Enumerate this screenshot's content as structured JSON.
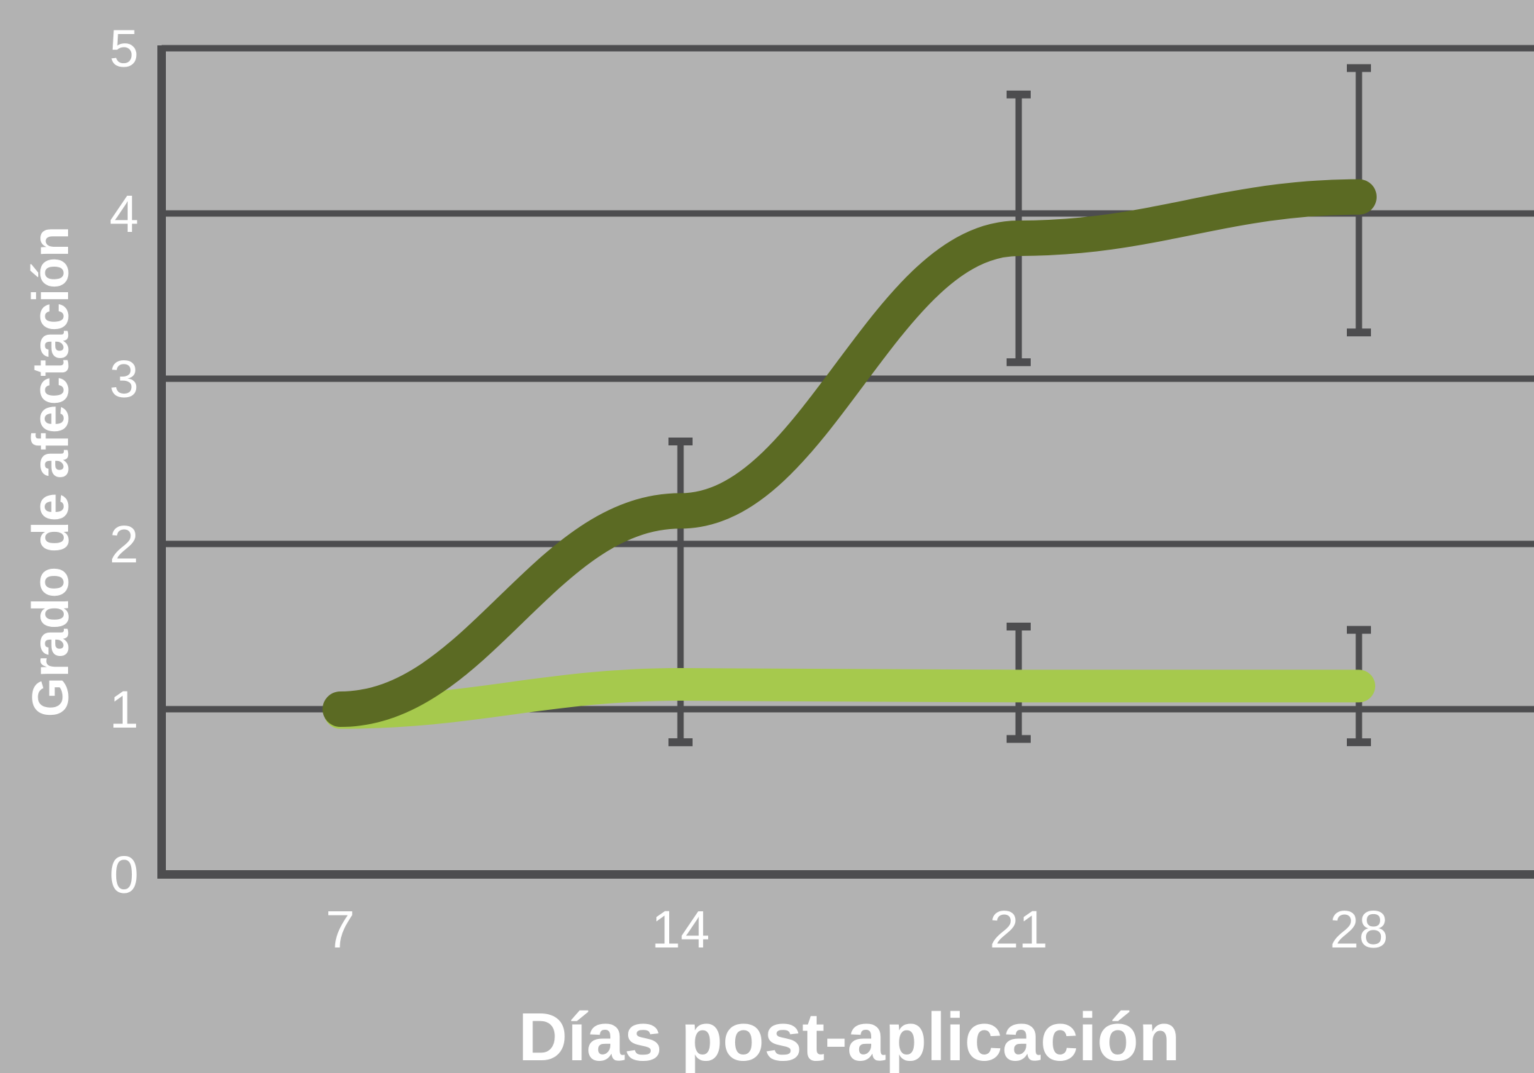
{
  "chart_data": {
    "type": "line",
    "title": "",
    "xlabel": "Días post-aplicación",
    "ylabel": "Grado de afectación",
    "categories": [
      "7",
      "14",
      "21",
      "28"
    ],
    "ylim": [
      0,
      5
    ],
    "yticks": [
      "0",
      "1",
      "2",
      "3",
      "4",
      "5"
    ],
    "grid": true,
    "legend": "none",
    "series": [
      {
        "color": "#5b6a23",
        "values": [
          1.0,
          2.2,
          3.85,
          4.1
        ],
        "error_high": [
          null,
          2.62,
          4.72,
          4.88
        ],
        "error_low": [
          null,
          0.8,
          3.1,
          3.28
        ]
      },
      {
        "color": "#a6c94d",
        "values": [
          0.98,
          1.15,
          1.14,
          1.14
        ],
        "error_high": [
          null,
          null,
          1.5,
          1.48
        ],
        "error_low": [
          null,
          0.8,
          0.82,
          0.8
        ]
      }
    ],
    "colors": {
      "axis": "#4d4d4f",
      "background": "#b2b2b2",
      "text": "#ffffff"
    }
  }
}
